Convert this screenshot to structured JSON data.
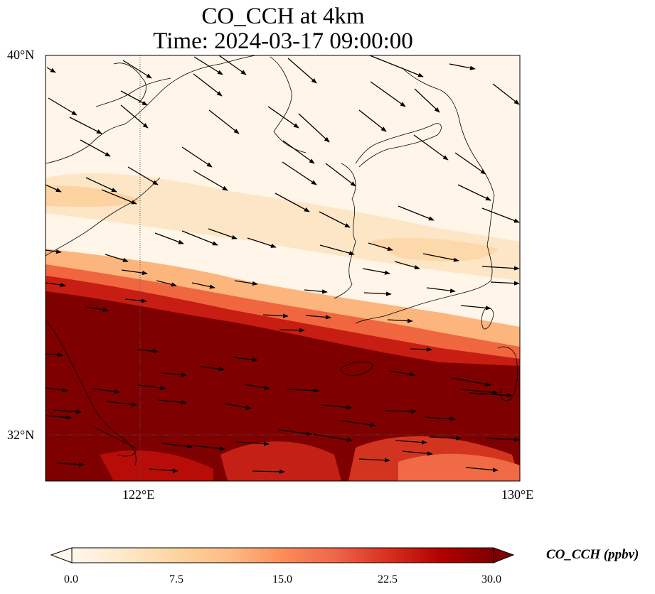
{
  "title": {
    "line1": "CO_CCH at 4km",
    "line2": "Time: 2024-03-17 09:00:00"
  },
  "map": {
    "variable": "CO_CCH",
    "level": "4km",
    "time": "2024-03-17 09:00:00",
    "lon_range": [
      120.4,
      130.0
    ],
    "lat_range": [
      31.2,
      40.0
    ],
    "gridlines": {
      "lon": [
        "122°E"
      ],
      "lat": [
        "32°N"
      ],
      "style": "dotted"
    },
    "lat_ticks": [
      "40°N",
      "32°N"
    ],
    "lon_ticks": [
      "122°E",
      "130°E"
    ],
    "wind_vectors": "shown",
    "wind_direction": "northwesterly to westerly",
    "pattern": "high CO band (>30 ppbv) across south-west, decreasing to near 0 in north",
    "coastlines": "shown"
  },
  "colorbar": {
    "label": "CO_CCH (ppbv)",
    "ticks": [
      "0.0",
      "7.5",
      "15.0",
      "22.5",
      "30.0"
    ],
    "min": 0,
    "max": 30,
    "extend": "both",
    "colormap": [
      "#fff7ec",
      "#fee8c8",
      "#fdd49e",
      "#fdbb84",
      "#fc8d59",
      "#ef6548",
      "#d7301f",
      "#b30000",
      "#7f0000"
    ]
  }
}
